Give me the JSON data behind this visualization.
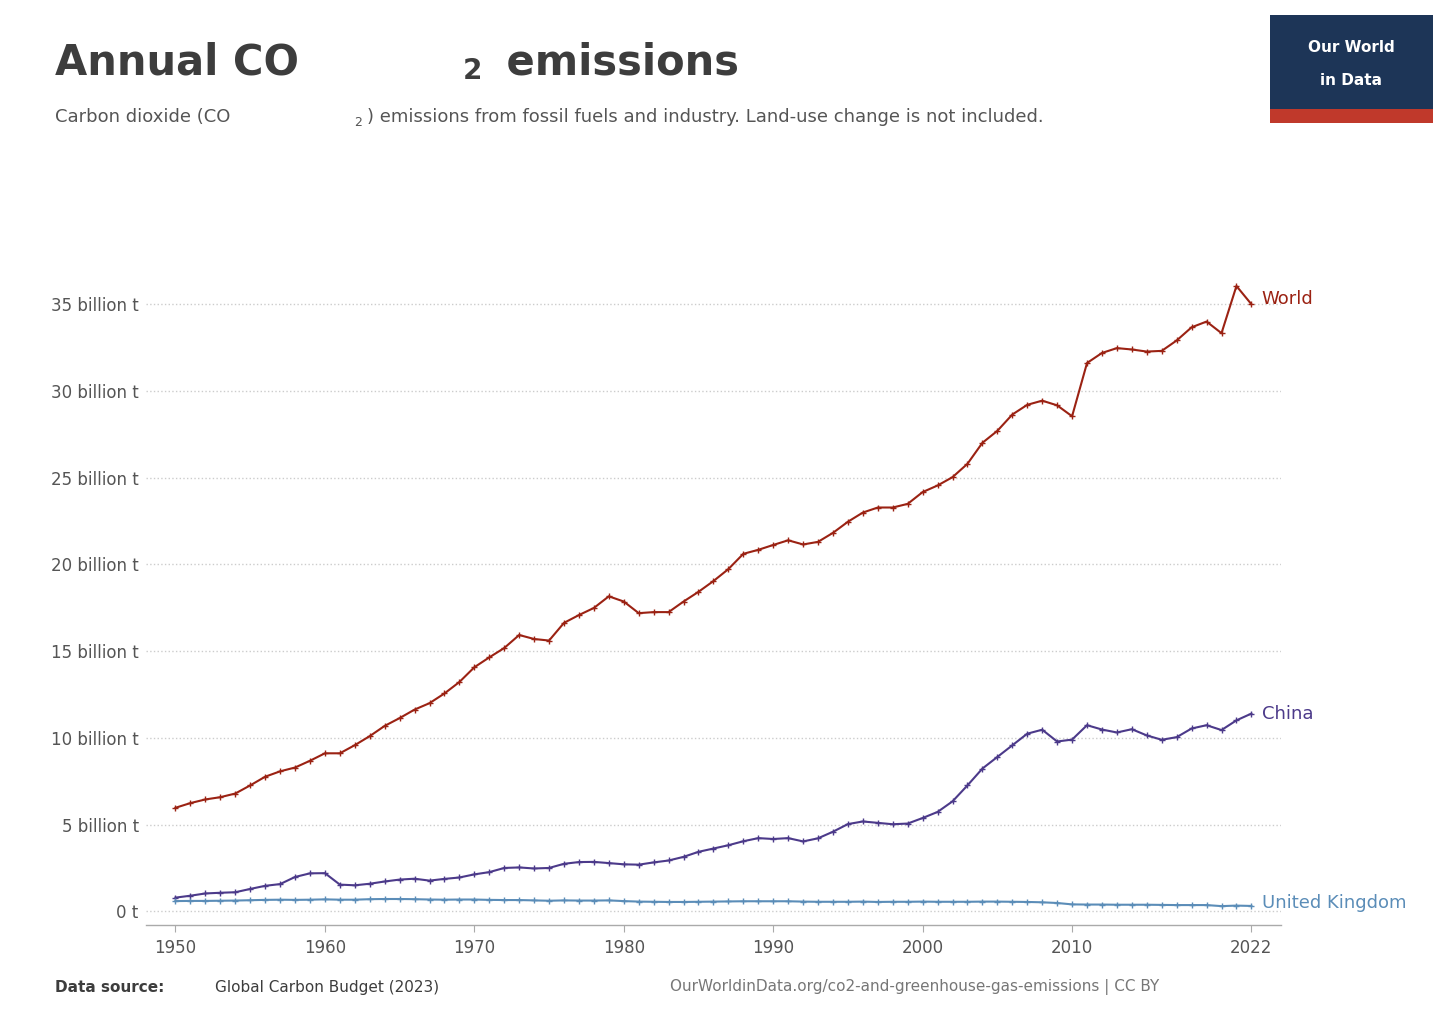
{
  "world_color": "#9B2213",
  "china_color": "#4C3A8A",
  "uk_color": "#5B8DB8",
  "background_color": "#FFFFFF",
  "years": [
    1950,
    1951,
    1952,
    1953,
    1954,
    1955,
    1956,
    1957,
    1958,
    1959,
    1960,
    1961,
    1962,
    1963,
    1964,
    1965,
    1966,
    1967,
    1968,
    1969,
    1970,
    1971,
    1972,
    1973,
    1974,
    1975,
    1976,
    1977,
    1978,
    1979,
    1980,
    1981,
    1982,
    1983,
    1984,
    1985,
    1986,
    1987,
    1988,
    1989,
    1990,
    1991,
    1992,
    1993,
    1994,
    1995,
    1996,
    1997,
    1998,
    1999,
    2000,
    2001,
    2002,
    2003,
    2004,
    2005,
    2006,
    2007,
    2008,
    2009,
    2010,
    2011,
    2012,
    2013,
    2014,
    2015,
    2016,
    2017,
    2018,
    2019,
    2020,
    2021,
    2022
  ],
  "world_values": [
    5.97,
    6.24,
    6.45,
    6.58,
    6.79,
    7.26,
    7.76,
    8.07,
    8.29,
    8.68,
    9.11,
    9.11,
    9.58,
    10.1,
    10.69,
    11.14,
    11.63,
    12.0,
    12.56,
    13.22,
    14.07,
    14.64,
    15.18,
    15.93,
    15.7,
    15.61,
    16.63,
    17.08,
    17.49,
    18.16,
    17.86,
    17.19,
    17.25,
    17.25,
    17.86,
    18.42,
    19.04,
    19.73,
    20.61,
    20.84,
    21.12,
    21.39,
    21.15,
    21.3,
    21.82,
    22.46,
    22.99,
    23.28,
    23.28,
    23.49,
    24.17,
    24.55,
    25.03,
    25.8,
    27.01,
    27.7,
    28.64,
    29.2,
    29.44,
    29.17,
    28.54,
    31.61,
    32.19,
    32.47,
    32.39,
    32.27,
    32.31,
    32.91,
    33.67,
    34.0,
    33.33,
    36.05,
    35.0
  ],
  "china_values": [
    0.79,
    0.9,
    1.03,
    1.07,
    1.1,
    1.29,
    1.47,
    1.57,
    1.98,
    2.19,
    2.2,
    1.54,
    1.5,
    1.59,
    1.72,
    1.83,
    1.88,
    1.77,
    1.87,
    1.95,
    2.13,
    2.26,
    2.5,
    2.53,
    2.47,
    2.5,
    2.74,
    2.84,
    2.85,
    2.78,
    2.71,
    2.69,
    2.82,
    2.93,
    3.14,
    3.43,
    3.62,
    3.81,
    4.04,
    4.22,
    4.17,
    4.22,
    4.03,
    4.21,
    4.59,
    5.03,
    5.18,
    5.1,
    5.02,
    5.06,
    5.38,
    5.73,
    6.34,
    7.26,
    8.23,
    8.9,
    9.57,
    10.24,
    10.47,
    9.79,
    9.9,
    10.73,
    10.48,
    10.31,
    10.5,
    10.14,
    9.89,
    10.04,
    10.54,
    10.73,
    10.45,
    11.01,
    11.4
  ],
  "uk_values": [
    0.59,
    0.6,
    0.6,
    0.61,
    0.62,
    0.64,
    0.66,
    0.67,
    0.66,
    0.67,
    0.69,
    0.67,
    0.67,
    0.7,
    0.71,
    0.71,
    0.7,
    0.68,
    0.67,
    0.68,
    0.68,
    0.66,
    0.65,
    0.65,
    0.63,
    0.61,
    0.63,
    0.62,
    0.62,
    0.63,
    0.59,
    0.56,
    0.55,
    0.54,
    0.54,
    0.55,
    0.56,
    0.57,
    0.58,
    0.58,
    0.58,
    0.58,
    0.56,
    0.55,
    0.55,
    0.55,
    0.56,
    0.54,
    0.55,
    0.55,
    0.56,
    0.55,
    0.55,
    0.55,
    0.56,
    0.56,
    0.55,
    0.54,
    0.52,
    0.48,
    0.4,
    0.39,
    0.39,
    0.38,
    0.38,
    0.38,
    0.37,
    0.36,
    0.36,
    0.36,
    0.3,
    0.33,
    0.31
  ],
  "yticks": [
    0,
    5,
    10,
    15,
    20,
    25,
    30,
    35
  ],
  "ytick_labels": [
    "0 t",
    "5 billion t",
    "10 billion t",
    "15 billion t",
    "20 billion t",
    "25 billion t",
    "30 billion t",
    "35 billion t"
  ],
  "xticks": [
    1950,
    1960,
    1970,
    1980,
    1990,
    2000,
    2010,
    2022
  ],
  "ylim": [
    -0.8,
    39.5
  ],
  "xlim": [
    1948,
    2024
  ]
}
